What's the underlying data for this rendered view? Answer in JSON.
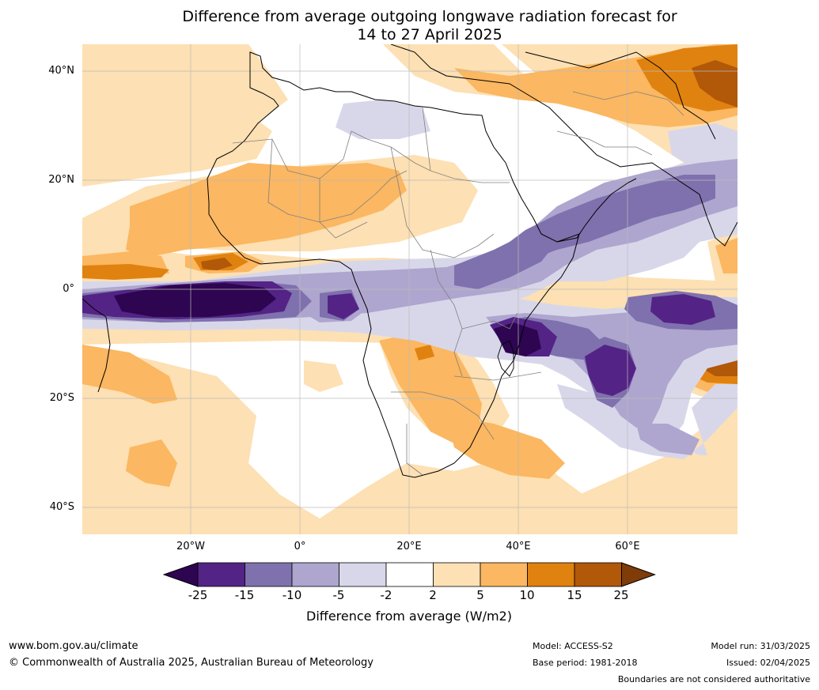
{
  "title_line1": "Difference from average outgoing longwave radiation forecast for",
  "title_line2": "14 to 27 April 2025",
  "lat_labels": [
    "40°N",
    "20°N",
    "0°",
    "20°S",
    "40°S"
  ],
  "lon_labels": [
    "20°W",
    "0°",
    "20°E",
    "40°E",
    "60°E"
  ],
  "colorbar": {
    "ticks": [
      "-25",
      "-15",
      "-10",
      "-5",
      "-2",
      "2",
      "5",
      "10",
      "15",
      "25"
    ],
    "colors": [
      "#2d0550",
      "#542386",
      "#7f71ad",
      "#aea6cf",
      "#d8d7ea",
      "#ffffff",
      "#fde0b3",
      "#fbb761",
      "#e0820f",
      "#b15809",
      "#7f3b08"
    ],
    "title": "Difference from average (W/m2)"
  },
  "footer": {
    "website": "www.bom.gov.au/climate",
    "copyright": "© Commonwealth of Australia 2025, Australian Bureau of Meteorology",
    "model": "Model: ACCESS-S2",
    "base_period": "Base period: 1981-2018",
    "model_run": "Model run: 31/03/2025",
    "issued": "Issued: 02/04/2025",
    "disclaimer": "Boundaries are not considered authoritative"
  }
}
